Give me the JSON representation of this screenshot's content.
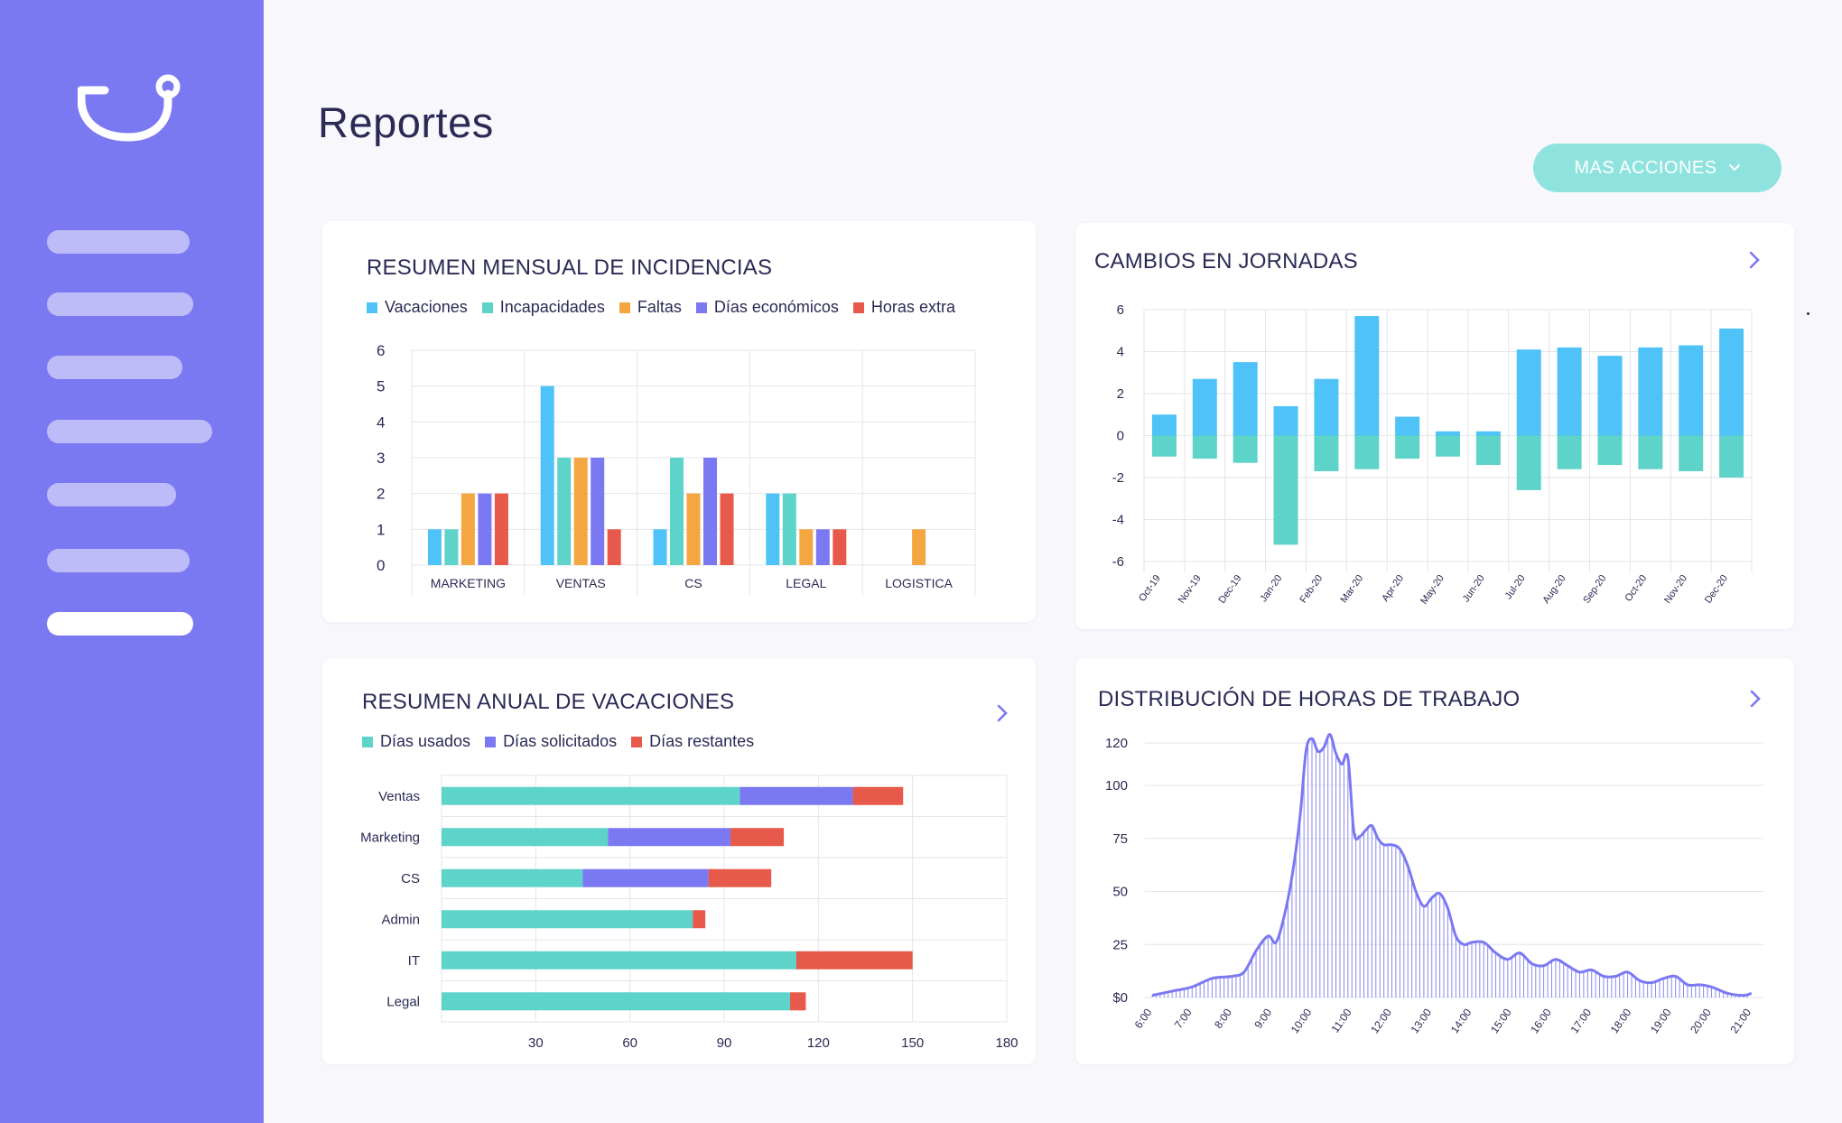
{
  "app": {
    "title": "Reportes",
    "more_actions_label": "MAS ACCIONES",
    "nav_count": 7,
    "active_nav_index": 6
  },
  "colors": {
    "sidebar": "#7b79f2",
    "vacaciones": "#4fc2f7",
    "incapacidades": "#5ed3c9",
    "faltas": "#f4a640",
    "dias_economicos": "#7b79f2",
    "horas_extra": "#e7594a"
  },
  "icons": [
    "app-logo-icon",
    "chevron-down-icon",
    "chevron-right-icon"
  ],
  "cards": {
    "monthly": {
      "title": "RESUMEN MENSUAL DE INCIDENCIAS",
      "legend": [
        "Vacaciones",
        "Incapacidades",
        "Faltas",
        "Días económicos",
        "Horas extra"
      ]
    },
    "shifts": {
      "title": "CAMBIOS EN JORNADAS"
    },
    "annual": {
      "title": "RESUMEN ANUAL DE VACACIONES",
      "legend": [
        "Días usados",
        "Días solicitados",
        "Días restantes"
      ]
    },
    "hours": {
      "title": "DISTRIBUCIÓN DE HORAS DE TRABAJO"
    }
  },
  "chart_data": [
    {
      "id": "monthly",
      "type": "bar",
      "title": "RESUMEN MENSUAL DE INCIDENCIAS",
      "categories": [
        "MARKETING",
        "VENTAS",
        "CS",
        "LEGAL",
        "LOGISTICA"
      ],
      "series": [
        {
          "name": "Vacaciones",
          "color": "#4fc2f7",
          "values": [
            1,
            5,
            1,
            2,
            0
          ]
        },
        {
          "name": "Incapacidades",
          "color": "#5ed3c9",
          "values": [
            1,
            3,
            3,
            2,
            0
          ]
        },
        {
          "name": "Faltas",
          "color": "#f4a640",
          "values": [
            2,
            3,
            2,
            1,
            1
          ]
        },
        {
          "name": "Días económicos",
          "color": "#7b79f2",
          "values": [
            2,
            3,
            3,
            1,
            0
          ]
        },
        {
          "name": "Horas extra",
          "color": "#e7594a",
          "values": [
            2,
            1,
            2,
            1,
            0
          ]
        }
      ],
      "ylim": [
        0,
        6
      ],
      "yticks": [
        0,
        1,
        2,
        3,
        4,
        5,
        6
      ],
      "grid": true
    },
    {
      "id": "shifts",
      "type": "bar",
      "title": "CAMBIOS EN JORNADAS",
      "categories": [
        "Oct-19",
        "Nov-19",
        "Dec-19",
        "Jan-20",
        "Feb-20",
        "Mar-20",
        "Apr-20",
        "May-20",
        "Jun-20",
        "Jul-20",
        "Aug-20",
        "Sep-20",
        "Oct-20",
        "Nov-20",
        "Dec-20"
      ],
      "series": [
        {
          "name": "positivo",
          "color": "#4fc2f7",
          "values": [
            1.0,
            2.7,
            3.5,
            1.4,
            2.7,
            5.7,
            0.9,
            0.2,
            0.2,
            4.1,
            4.2,
            3.8,
            4.2,
            4.3,
            5.1
          ]
        },
        {
          "name": "negativo",
          "color": "#5ed3c9",
          "values": [
            -1.0,
            -1.1,
            -1.3,
            -5.2,
            -1.7,
            -1.6,
            -1.1,
            -1.0,
            -1.4,
            -2.6,
            -1.6,
            -1.4,
            -1.6,
            -1.7,
            -2.0
          ]
        }
      ],
      "ylim": [
        -6,
        6
      ],
      "yticks": [
        -6,
        -4,
        -2,
        0,
        2,
        4,
        6
      ],
      "grid": true
    },
    {
      "id": "annual",
      "type": "bar",
      "orientation": "horizontal",
      "stacked": true,
      "title": "RESUMEN ANUAL DE VACACIONES",
      "categories": [
        "Ventas",
        "Marketing",
        "CS",
        "Admin",
        "IT",
        "Legal"
      ],
      "series": [
        {
          "name": "Días usados",
          "color": "#5ed3c9",
          "values": [
            95,
            53,
            45,
            80,
            113,
            111
          ]
        },
        {
          "name": "Días solicitados",
          "color": "#7b79f2",
          "values": [
            36,
            39,
            40,
            0,
            0,
            0
          ]
        },
        {
          "name": "Días restantes",
          "color": "#e7594a",
          "values": [
            16,
            17,
            20,
            4,
            37,
            5
          ]
        }
      ],
      "xlim": [
        0,
        180
      ],
      "xticks": [
        30,
        60,
        90,
        120,
        150,
        180
      ],
      "grid": true
    },
    {
      "id": "hours",
      "type": "area",
      "title": "DISTRIBUCIÓN DE HORAS DE TRABAJO",
      "x_labels": [
        "6:00",
        "7:00",
        "8:00",
        "9:00",
        "10:00",
        "11:00",
        "12:00",
        "13:00",
        "14:00",
        "15:00",
        "16:00",
        "17:00",
        "18:00",
        "19:00",
        "20:00",
        "21:00"
      ],
      "x": [
        6.0,
        6.5,
        7.0,
        7.5,
        8.0,
        8.3,
        8.6,
        8.9,
        9.1,
        9.3,
        9.5,
        9.7,
        9.85,
        10.0,
        10.15,
        10.3,
        10.45,
        10.6,
        10.75,
        10.9,
        11.05,
        11.2,
        11.35,
        11.5,
        11.65,
        11.8,
        12.0,
        12.2,
        12.4,
        12.6,
        12.8,
        13.0,
        13.2,
        13.4,
        13.6,
        13.8,
        14.0,
        14.3,
        14.6,
        14.9,
        15.2,
        15.5,
        15.8,
        16.1,
        16.4,
        16.7,
        17.0,
        17.3,
        17.6,
        17.9,
        18.2,
        18.5,
        18.8,
        19.1,
        19.4,
        19.7,
        20.0,
        20.4,
        20.8,
        21.0
      ],
      "y": [
        1,
        3,
        5,
        9,
        10,
        12,
        22,
        29,
        26,
        38,
        57,
        85,
        116,
        122,
        116,
        118,
        124,
        115,
        110,
        113,
        78,
        76,
        79,
        81,
        75,
        72,
        72,
        70,
        62,
        50,
        43,
        47,
        49,
        42,
        29,
        25,
        26,
        26,
        21,
        18,
        21,
        16,
        15,
        18,
        15,
        12,
        13,
        10,
        10,
        12,
        8,
        7,
        9,
        10,
        6,
        6,
        5,
        2,
        1,
        2
      ],
      "ylim": [
        0,
        120
      ],
      "yticks": [
        0,
        25,
        50,
        75,
        100,
        120
      ],
      "ytick_labels": [
        "$0",
        "25",
        "50",
        "75",
        "100",
        "120"
      ],
      "grid": true
    }
  ]
}
